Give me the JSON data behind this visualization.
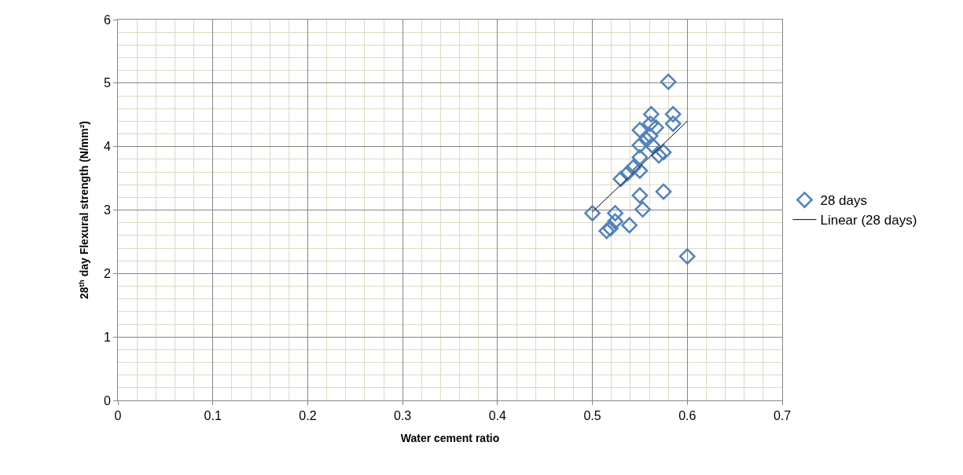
{
  "chart_data": {
    "type": "scatter",
    "xlabel": "Water cement ratio",
    "ylabel": "28$^{th}$ day Flexural strength (N/mm²)",
    "xlim": [
      0,
      0.7
    ],
    "xticks": [
      0,
      0.1,
      0.2,
      0.3,
      0.4,
      0.5,
      0.6,
      0.7
    ],
    "ylim": [
      0,
      6
    ],
    "yticks": [
      0,
      1,
      2,
      3,
      4,
      5,
      6
    ],
    "grid": true,
    "legend": "right",
    "series": [
      {
        "name": "28 days",
        "marker": "diamond",
        "color": "#4f81bd",
        "x": [
          0.5,
          0.515,
          0.519,
          0.524,
          0.524,
          0.539,
          0.53,
          0.537,
          0.543,
          0.55,
          0.55,
          0.55,
          0.55,
          0.55,
          0.553,
          0.557,
          0.561,
          0.562,
          0.563,
          0.567,
          0.561,
          0.57,
          0.575,
          0.575,
          0.58,
          0.585,
          0.585,
          0.6
        ],
        "values": [
          2.95,
          2.67,
          2.71,
          2.82,
          2.95,
          2.76,
          3.49,
          3.58,
          3.67,
          3.62,
          3.83,
          4.02,
          4.26,
          3.23,
          3.01,
          4.11,
          4.17,
          4.51,
          4.02,
          4.3,
          4.36,
          3.86,
          3.91,
          3.29,
          5.02,
          4.51,
          4.36,
          2.27
        ]
      },
      {
        "name": "Linear (28 days)",
        "type": "line",
        "marker": "none",
        "color": "#000000",
        "line_style": "solid",
        "x": [
          0.5,
          0.6
        ],
        "values": [
          2.97,
          4.4
        ]
      }
    ]
  }
}
